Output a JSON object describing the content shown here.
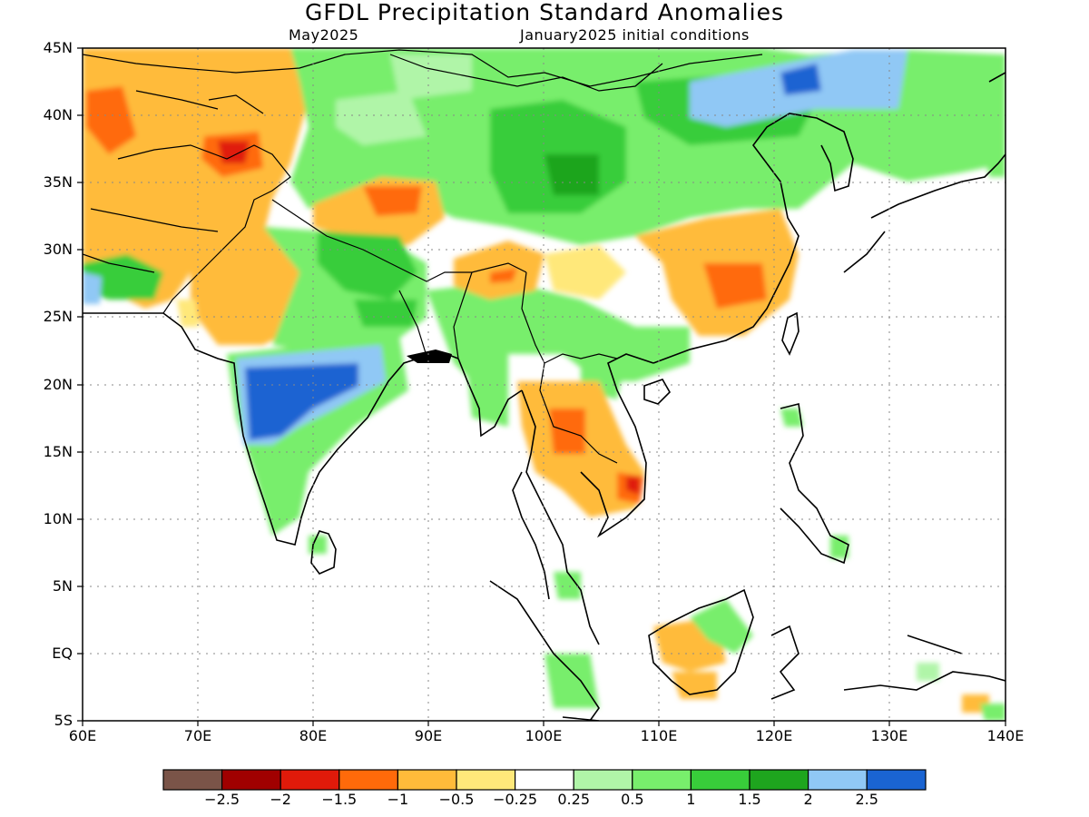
{
  "title": "GFDL Precipitation Standard Anomalies",
  "subtitle_left": "May2025",
  "subtitle_right": "January2025 initial conditions",
  "map": {
    "lon_range": [
      60,
      140
    ],
    "lat_range": [
      -5,
      45
    ],
    "lat_ticks": [
      "45N",
      "40N",
      "35N",
      "30N",
      "25N",
      "20N",
      "15N",
      "10N",
      "5N",
      "EQ",
      "5S"
    ],
    "lon_ticks": [
      "60E",
      "70E",
      "80E",
      "90E",
      "100E",
      "110E",
      "120E",
      "130E",
      "140E"
    ],
    "gridlines": "dotted"
  },
  "colorbar": {
    "colors": [
      "#7a5448",
      "#a00000",
      "#e01a0a",
      "#ff6a0a",
      "#ffbb3a",
      "#ffe87a",
      "#ffffff",
      "#b0f5a8",
      "#78ee6c",
      "#38cd3a",
      "#1ea51e",
      "#90c8f5",
      "#1a64d2"
    ],
    "labels": [
      "−2.5",
      "−2",
      "−1.5",
      "−1",
      "−0.5",
      "−0.25",
      "0.25",
      "0.5",
      "1",
      "1.5",
      "2",
      "2.5"
    ]
  }
}
